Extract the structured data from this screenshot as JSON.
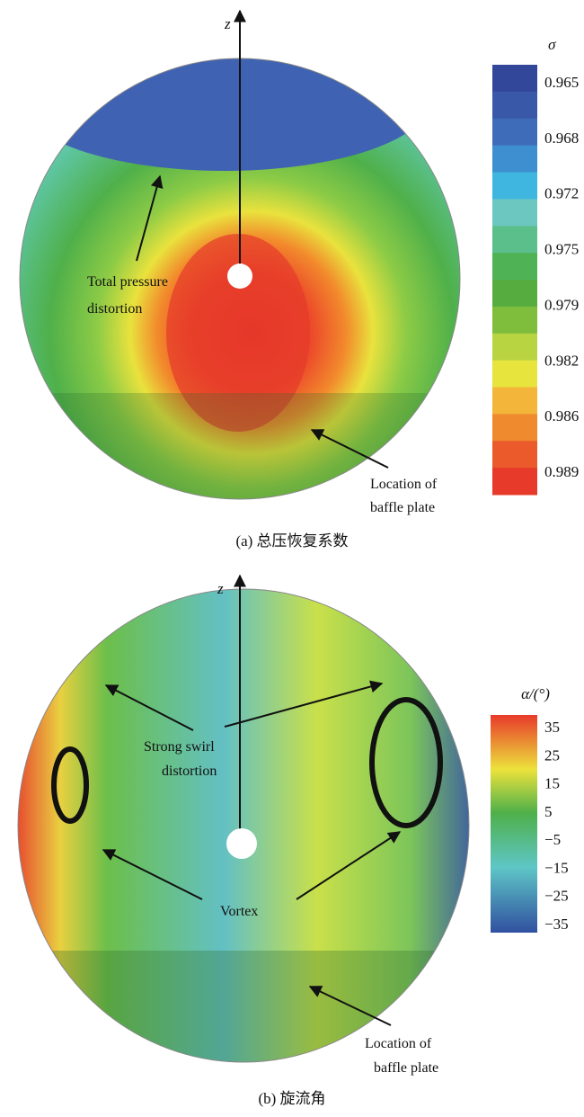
{
  "panels": [
    {
      "axis_label": "z",
      "colorbar_title": "σ",
      "colorbar_labels": [
        "0.965",
        "0.968",
        "0.972",
        "0.975",
        "0.979",
        "0.982",
        "0.986",
        "0.989"
      ],
      "annotations": [
        {
          "lines": [
            "Total pressure",
            "distortion"
          ]
        },
        {
          "lines": [
            "Location of",
            "baffle plate"
          ]
        }
      ],
      "caption": "(a) 总压恢复系数"
    },
    {
      "axis_label": "z",
      "colorbar_title": "α/(°)",
      "colorbar_labels": [
        "35",
        "25",
        "15",
        "5",
        "−5",
        "−15",
        "−25",
        "−35"
      ],
      "annotations": [
        {
          "lines": [
            "Strong swirl",
            "distortion"
          ]
        },
        {
          "lines": [
            "Vortex"
          ]
        },
        {
          "lines": [
            "Location of",
            "baffle plate"
          ]
        }
      ],
      "caption": "(b) 旋流角"
    }
  ]
}
